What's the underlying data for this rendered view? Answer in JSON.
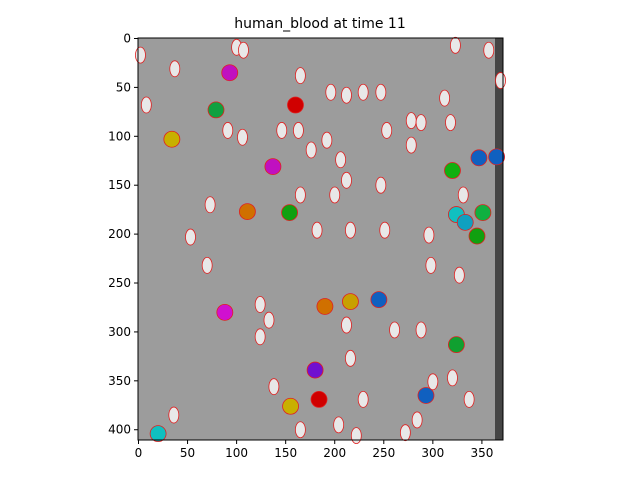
{
  "chart_data": {
    "type": "image",
    "title": "human_blood at time 11",
    "xlim": [
      -0.5,
      371.5
    ],
    "ylim": [
      410.5,
      -0.5
    ],
    "xticks": [
      0,
      50,
      100,
      150,
      200,
      250,
      300,
      350
    ],
    "yticks": [
      0,
      50,
      100,
      150,
      200,
      250,
      300,
      350,
      400
    ],
    "background": "#9c9c9c",
    "segmented": {
      "x": [
        93,
        160,
        79,
        34,
        137,
        347,
        365,
        320,
        111,
        154,
        324,
        333,
        351,
        345,
        190,
        216,
        245,
        88,
        324,
        180,
        184,
        155,
        293,
        20
      ],
      "y": [
        35,
        68,
        73,
        103,
        131,
        122,
        121,
        135,
        177,
        178,
        180,
        188,
        178,
        202,
        274,
        269,
        267,
        280,
        313,
        339,
        369,
        376,
        365,
        404
      ],
      "colors": [
        "#c010c0",
        "#d00000",
        "#10a040",
        "#c8b000",
        "#c010c0",
        "#1060c0",
        "#1060c0",
        "#10b010",
        "#d07000",
        "#10a010",
        "#10c0c0",
        "#10a0c0",
        "#10b040",
        "#10a010",
        "#d07000",
        "#c8a000",
        "#1060c0",
        "#d010d0",
        "#10a030",
        "#7010d0",
        "#d00000",
        "#c8b000",
        "#1060c0",
        "#10c0c0"
      ]
    },
    "outlined": {
      "x": [
        2,
        37,
        100,
        107,
        165,
        8,
        91,
        106,
        146,
        163,
        196,
        212,
        229,
        247,
        278,
        253,
        192,
        176,
        206,
        212,
        247,
        165,
        200,
        182,
        216,
        251,
        73,
        53,
        70,
        124,
        133,
        124,
        212,
        261,
        298,
        327,
        296,
        288,
        318,
        323,
        357,
        369,
        165,
        204,
        222,
        272,
        320,
        337,
        229,
        138,
        36,
        284,
        216,
        331,
        312,
        278,
        288,
        300
      ],
      "y": [
        17,
        31,
        9,
        12,
        38,
        68,
        94,
        101,
        94,
        94,
        55,
        58,
        55,
        55,
        84,
        94,
        104,
        114,
        124,
        145,
        150,
        160,
        160,
        196,
        196,
        196,
        170,
        203,
        232,
        272,
        288,
        305,
        293,
        298,
        232,
        242,
        201,
        86,
        86,
        7,
        12,
        43,
        400,
        395,
        406,
        403,
        347,
        369,
        369,
        356,
        385,
        390,
        327,
        160,
        61,
        109,
        298,
        351
      ],
      "color": "#e02020"
    }
  }
}
